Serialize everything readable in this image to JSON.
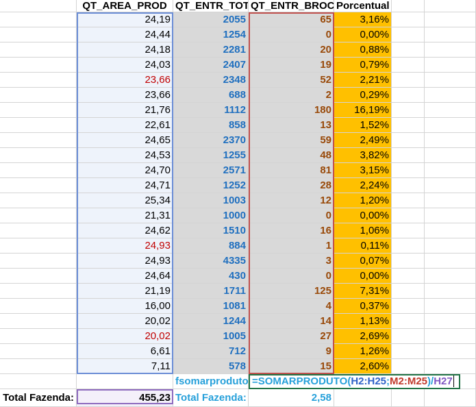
{
  "sheet": {
    "headers": [
      "QT_AREA_PROD",
      "QT_ENTR_TOT",
      "QT_ENTR_BROC",
      "Porcentual"
    ],
    "rows": [
      [
        "24,19",
        "2055",
        "65",
        "3,16%"
      ],
      [
        "24,44",
        "1254",
        "0",
        "0,00%"
      ],
      [
        "24,18",
        "2281",
        "20",
        "0,88%"
      ],
      [
        "24,03",
        "2407",
        "19",
        "0,79%"
      ],
      [
        {
          "text": "23,66",
          "color": "#c00000"
        },
        "2348",
        "52",
        "2,21%"
      ],
      [
        "23,66",
        "688",
        "2",
        "0,29%"
      ],
      [
        "21,76",
        "1112",
        "180",
        "16,19%"
      ],
      [
        "22,61",
        "858",
        "13",
        "1,52%"
      ],
      [
        "24,65",
        "2370",
        "59",
        "2,49%"
      ],
      [
        "24,53",
        "1255",
        "48",
        "3,82%"
      ],
      [
        "24,70",
        "2571",
        "81",
        "3,15%"
      ],
      [
        "24,71",
        "1252",
        "28",
        "2,24%"
      ],
      [
        "25,34",
        "1003",
        "12",
        "1,20%"
      ],
      [
        "21,31",
        "1000",
        "0",
        "0,00%"
      ],
      [
        "24,62",
        "1510",
        "16",
        "1,06%"
      ],
      [
        {
          "text": "24,93",
          "color": "#c00000"
        },
        "884",
        "1",
        "0,11%"
      ],
      [
        "24,93",
        "4335",
        "3",
        "0,07%"
      ],
      [
        "24,64",
        "430",
        "0",
        "0,00%"
      ],
      [
        "21,19",
        "1711",
        "125",
        "7,31%"
      ],
      [
        "16,00",
        "1081",
        "4",
        "0,37%"
      ],
      [
        "20,02",
        "1244",
        "14",
        "1,13%"
      ],
      [
        {
          "text": "20,02",
          "color": "#c00000"
        },
        "1005",
        "27",
        "2,69%"
      ],
      [
        "6,61",
        "712",
        "9",
        "1,26%"
      ],
      [
        "7,11",
        "578",
        "15",
        "2,60%"
      ]
    ],
    "formula_label": "fsomarproduto:",
    "formula": [
      "=SOMARPRODUTO(",
      "H2:H25",
      ";",
      "M2:M25",
      ")/",
      "H27"
    ],
    "total_label": "Total Fazenda:",
    "total_area": "455,23",
    "result_label": "Total Fazenda:",
    "result_value": "2,58"
  }
}
